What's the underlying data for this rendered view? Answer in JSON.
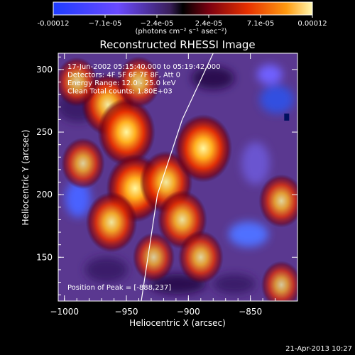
{
  "chart_data": {
    "type": "heatmap",
    "title": "Reconstructed RHESSI Image",
    "xlabel": "Heliocentric X (arcsec)",
    "ylabel": "Heliocentric Y (arcsec)",
    "xlim": [
      -1005,
      -812
    ],
    "ylim": [
      115,
      313
    ],
    "xticks": [
      -1000,
      -950,
      -900,
      -850
    ],
    "xtick_labels": [
      "−1000",
      "−950",
      "−900",
      "−850"
    ],
    "yticks": [
      150,
      200,
      250,
      300
    ],
    "ytick_labels": [
      "150",
      "200",
      "250",
      "300"
    ],
    "colorbar": {
      "ticks": [
        "-0.00012",
        "−7.1e-05",
        "−2.4e-05",
        "2.4e-05",
        "7.1e-05",
        "0.00012"
      ],
      "range": [
        -0.00012,
        0.00012
      ],
      "units": "(photons cm⁻² s⁻¹ asec⁻²)"
    },
    "annotations": [
      "17-Jun-2002 05:15:40.000 to 05:19:42.000",
      "Detectors: 4F 5F 6F 7F 8F, Att 0",
      "Energy Range: 12.0 - 25.0 keV",
      "Clean     Total counts: 1.80E+03"
    ],
    "peak_label": "Position of Peak = [-888,237]",
    "peak": [
      -888,
      237
    ],
    "sources": [
      {
        "x": -965,
        "y": 272,
        "level": 0.85
      },
      {
        "x": -950,
        "y": 250,
        "level": 1.0
      },
      {
        "x": -943,
        "y": 205,
        "level": 1.0
      },
      {
        "x": -962,
        "y": 178,
        "level": 0.8
      },
      {
        "x": -918,
        "y": 210,
        "level": 0.85
      },
      {
        "x": -888,
        "y": 237,
        "level": 1.0
      },
      {
        "x": -905,
        "y": 180,
        "level": 0.75
      },
      {
        "x": -890,
        "y": 150,
        "level": 0.6
      },
      {
        "x": -928,
        "y": 150,
        "level": 0.5
      },
      {
        "x": -985,
        "y": 225,
        "level": 0.55
      },
      {
        "x": -990,
        "y": 290,
        "level": 0.5
      },
      {
        "x": -940,
        "y": 290,
        "level": 0.55
      },
      {
        "x": -825,
        "y": 195,
        "level": 0.6
      },
      {
        "x": -825,
        "y": 128,
        "level": 0.45
      }
    ],
    "limb_curve": [
      [
        -880,
        313
      ],
      [
        -905,
        260
      ],
      [
        -925,
        200
      ],
      [
        -938,
        115
      ]
    ],
    "grid": false
  },
  "footer": {
    "date": "21-Apr-2013 10:27"
  }
}
